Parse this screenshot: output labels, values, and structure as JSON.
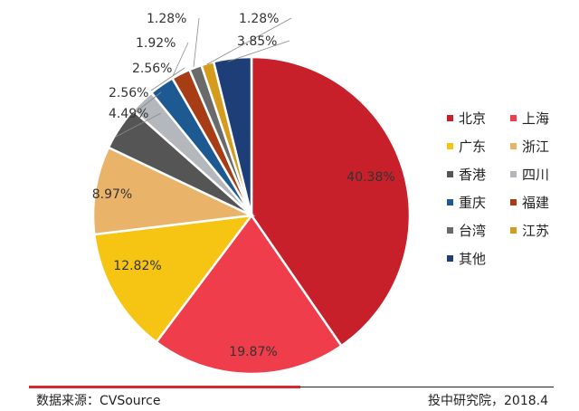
{
  "chart_data": {
    "type": "pie",
    "title": "",
    "categories": [
      "北京",
      "上海",
      "广东",
      "浙江",
      "香港",
      "四川",
      "重庆",
      "福建",
      "台湾",
      "江苏",
      "其他"
    ],
    "values": [
      40.38,
      19.87,
      12.82,
      8.97,
      4.49,
      2.56,
      2.56,
      1.92,
      1.28,
      1.28,
      3.85
    ],
    "labels": [
      "40.38%",
      "19.87%",
      "12.82%",
      "8.97%",
      "4.49%",
      "2.56%",
      "2.56%",
      "1.92%",
      "1.28%",
      "1.28%",
      "3.85%"
    ],
    "colors": [
      "#c8202a",
      "#ef3d4b",
      "#f6c513",
      "#e9b36a",
      "#555555",
      "#b4b7bb",
      "#1d5a92",
      "#a63d15",
      "#6a6a6a",
      "#d59b1d",
      "#1e3e77"
    ],
    "legend_position": "right"
  },
  "footer": {
    "source": "数据来源：CVSource",
    "credit": "投中研究院，2018.4"
  }
}
